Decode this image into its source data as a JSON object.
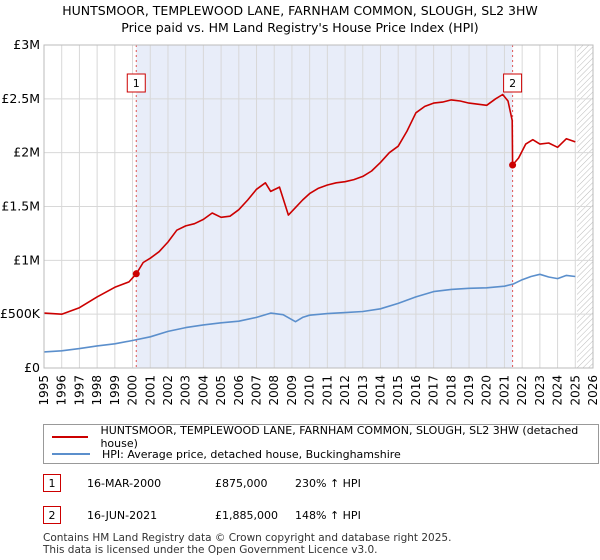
{
  "chart_data": {
    "type": "line",
    "title": "HUNTSMOOR, TEMPLEWOOD LANE, FARNHAM COMMON, SLOUGH, SL2 3HW",
    "subtitle": "Price paid vs. HM Land Registry's House Price Index (HPI)",
    "xlim": [
      1995,
      2026
    ],
    "ylim": [
      0,
      3000000
    ],
    "x_ticks": [
      "1995",
      "1996",
      "1997",
      "1998",
      "1999",
      "2000",
      "2001",
      "2002",
      "2003",
      "2004",
      "2005",
      "2006",
      "2007",
      "2008",
      "2009",
      "2010",
      "2011",
      "2012",
      "2013",
      "2014",
      "2015",
      "2016",
      "2017",
      "2018",
      "2019",
      "2020",
      "2021",
      "2022",
      "2023",
      "2024",
      "2025",
      "2026"
    ],
    "y_ticks": [
      {
        "value": 0,
        "label": "£0"
      },
      {
        "value": 500000,
        "label": "£500K"
      },
      {
        "value": 1000000,
        "label": "£1M"
      },
      {
        "value": 1500000,
        "label": "£1.5M"
      },
      {
        "value": 2000000,
        "label": "£2M"
      },
      {
        "value": 2500000,
        "label": "£2.5M"
      },
      {
        "value": 3000000,
        "label": "£3M"
      }
    ],
    "shaded_range": [
      2000.21,
      2021.46
    ],
    "future_hatch_from": 2025.1,
    "series": [
      {
        "name": "HUNTSMOOR, TEMPLEWOOD LANE, FARNHAM COMMON, SLOUGH, SL2 3HW (detached house)",
        "color": "#cc0000",
        "x": [
          1995.0,
          1996.0,
          1997.0,
          1998.0,
          1999.0,
          1999.8,
          2000.21,
          2000.6,
          2001.0,
          2001.5,
          2002.0,
          2002.5,
          2003.0,
          2003.5,
          2004.0,
          2004.5,
          2005.0,
          2005.5,
          2006.0,
          2006.5,
          2007.0,
          2007.5,
          2007.8,
          2008.3,
          2008.8,
          2009.2,
          2009.6,
          2010.0,
          2010.5,
          2011.0,
          2011.5,
          2012.0,
          2012.5,
          2013.0,
          2013.5,
          2014.0,
          2014.5,
          2015.0,
          2015.5,
          2016.0,
          2016.5,
          2017.0,
          2017.5,
          2018.0,
          2018.5,
          2019.0,
          2019.5,
          2020.0,
          2020.5,
          2020.9,
          2021.2,
          2021.44,
          2021.46,
          2021.8,
          2022.2,
          2022.6,
          2023.0,
          2023.5,
          2024.0,
          2024.5,
          2025.0
        ],
        "values": [
          510000,
          500000,
          560000,
          660000,
          750000,
          800000,
          875000,
          980000,
          1020000,
          1080000,
          1170000,
          1280000,
          1320000,
          1340000,
          1380000,
          1440000,
          1400000,
          1410000,
          1470000,
          1560000,
          1660000,
          1720000,
          1640000,
          1680000,
          1420000,
          1490000,
          1560000,
          1620000,
          1670000,
          1700000,
          1720000,
          1730000,
          1750000,
          1780000,
          1830000,
          1910000,
          2000000,
          2060000,
          2200000,
          2370000,
          2430000,
          2460000,
          2470000,
          2490000,
          2480000,
          2460000,
          2450000,
          2440000,
          2500000,
          2540000,
          2480000,
          2300000,
          1885000,
          1950000,
          2080000,
          2120000,
          2080000,
          2090000,
          2050000,
          2130000,
          2100000
        ]
      },
      {
        "name": "HPI: Average price, detached house, Buckinghamshire",
        "color": "#5b8fcc",
        "x": [
          1995.0,
          1996.0,
          1997.0,
          1998.0,
          1999.0,
          2000.0,
          2001.0,
          2002.0,
          2003.0,
          2004.0,
          2005.0,
          2006.0,
          2007.0,
          2007.8,
          2008.5,
          2009.2,
          2009.6,
          2010.0,
          2011.0,
          2012.0,
          2013.0,
          2014.0,
          2015.0,
          2016.0,
          2017.0,
          2018.0,
          2019.0,
          2020.0,
          2021.0,
          2021.5,
          2022.0,
          2022.5,
          2023.0,
          2023.5,
          2024.0,
          2024.5,
          2025.0
        ],
        "values": [
          150000,
          160000,
          180000,
          205000,
          225000,
          255000,
          290000,
          340000,
          375000,
          400000,
          420000,
          435000,
          470000,
          510000,
          495000,
          430000,
          470000,
          490000,
          505000,
          515000,
          525000,
          550000,
          600000,
          660000,
          710000,
          730000,
          740000,
          745000,
          760000,
          780000,
          820000,
          850000,
          870000,
          845000,
          830000,
          860000,
          850000
        ]
      }
    ],
    "markers": [
      {
        "id": "1",
        "x": 2000.21,
        "value": 875000
      },
      {
        "id": "2",
        "x": 2021.46,
        "value": 1885000
      }
    ]
  },
  "legend": {
    "entries": [
      {
        "label": "HUNTSMOOR, TEMPLEWOOD LANE, FARNHAM COMMON, SLOUGH, SL2 3HW (detached house)",
        "color": "#cc0000"
      },
      {
        "label": "HPI: Average price, detached house, Buckinghamshire",
        "color": "#5b8fcc"
      }
    ]
  },
  "transactions": [
    {
      "id": "1",
      "date": "16-MAR-2000",
      "price": "£875,000",
      "hpi": "230% ↑ HPI"
    },
    {
      "id": "2",
      "date": "16-JUN-2021",
      "price": "£1,885,000",
      "hpi": "148% ↑ HPI"
    }
  ],
  "footer": {
    "line1": "Contains HM Land Registry data © Crown copyright and database right 2025.",
    "line2": "This data is licensed under the Open Government Licence v3.0."
  }
}
